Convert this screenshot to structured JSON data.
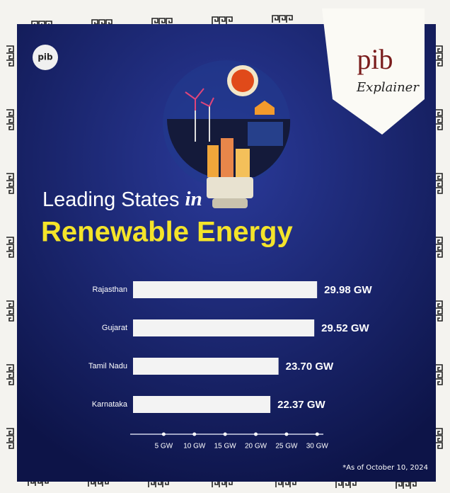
{
  "logo": {
    "name": "pib",
    "tagline": "Explainer"
  },
  "chart_data": {
    "type": "bar",
    "orientation": "horizontal",
    "title": "Leading States",
    "title_connector": "in",
    "subtitle": "Renewable Energy",
    "categories": [
      "Rajasthan",
      "Gujarat",
      "Tamil Nadu",
      "Karnataka"
    ],
    "values": [
      29.98,
      29.52,
      23.7,
      22.37
    ],
    "value_labels": [
      "29.98 GW",
      "29.52 GW",
      "23.70 GW",
      "22.37 GW"
    ],
    "color": "#f3f3f3",
    "xlim": [
      0,
      31
    ],
    "xticks": [
      {
        "value": 5,
        "label": "5 GW"
      },
      {
        "value": 10,
        "label": "10 GW"
      },
      {
        "value": 15,
        "label": "15 GW"
      },
      {
        "value": 20,
        "label": "20 GW"
      },
      {
        "value": 25,
        "label": "25 GW"
      },
      {
        "value": 30,
        "label": "30 GW"
      }
    ],
    "note": "*As of October 10, 2024"
  }
}
